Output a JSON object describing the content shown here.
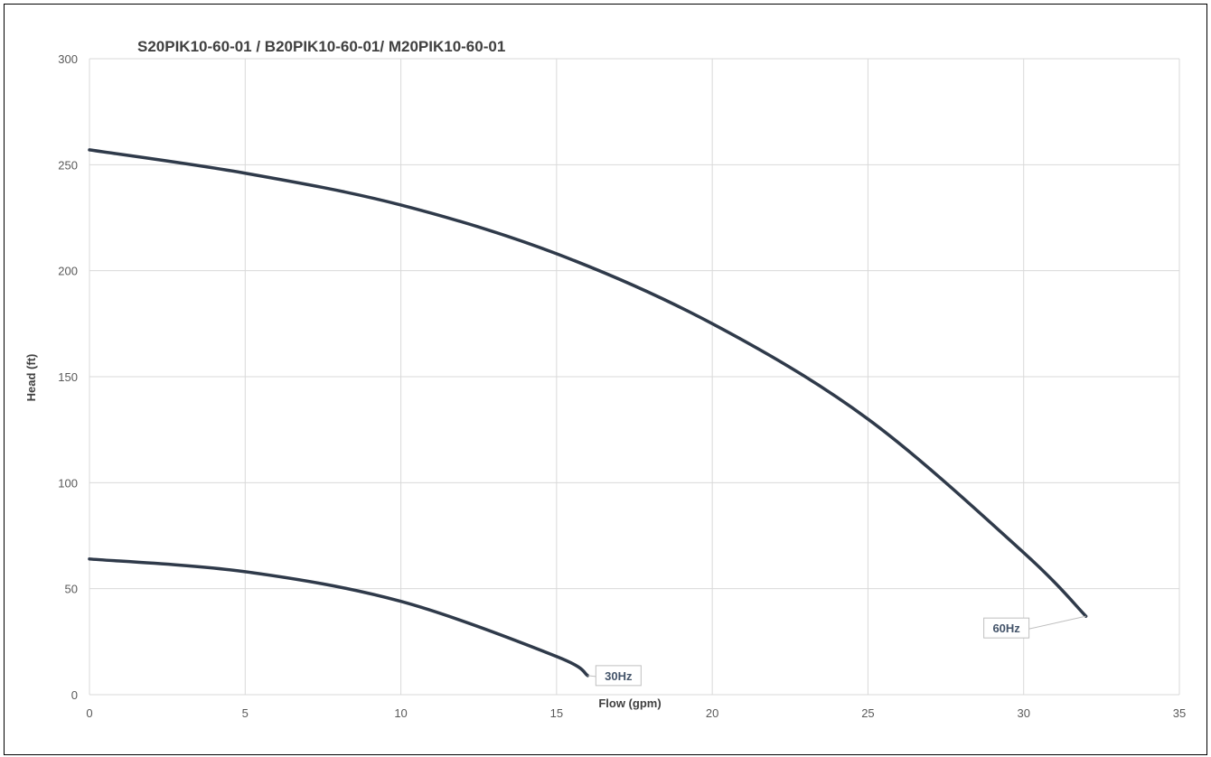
{
  "chart_data": {
    "type": "line",
    "title": "S20PIK10-60-01 / B20PIK10-60-01/ M20PIK10-60-01",
    "xlabel": "Flow (gpm)",
    "ylabel": "Head (ft)",
    "xlim": [
      0,
      35
    ],
    "ylim": [
      0,
      300
    ],
    "x_ticks": [
      "0",
      "5",
      "10",
      "15",
      "20",
      "25",
      "30",
      "35"
    ],
    "y_ticks": [
      "0",
      "50",
      "100",
      "150",
      "200",
      "250",
      "300"
    ],
    "grid": true,
    "line_color": "#2f3a4a",
    "series": [
      {
        "name": "60Hz",
        "x": [
          0,
          5,
          10,
          15,
          20,
          25,
          30,
          32
        ],
        "y": [
          257,
          246,
          231,
          208,
          175,
          130,
          67,
          37
        ]
      },
      {
        "name": "30Hz",
        "x": [
          0,
          5,
          10,
          15,
          16
        ],
        "y": [
          64,
          58,
          44,
          18,
          9
        ]
      }
    ]
  }
}
